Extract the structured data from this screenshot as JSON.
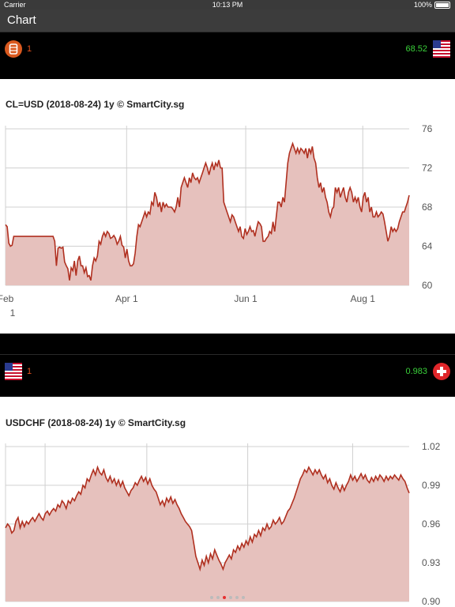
{
  "status": {
    "carrier": "Carrier",
    "time": "10:13 PM",
    "battery": "100%"
  },
  "nav": {
    "title": "Chart"
  },
  "pairs": [
    {
      "count": "1",
      "price": "68.52",
      "left_icon": "oil-barrel-icon",
      "right_icon": "us-flag-icon"
    },
    {
      "count": "1",
      "price": "0.983",
      "left_icon": "us-flag-icon",
      "right_icon": "swiss-flag-icon"
    }
  ],
  "chart_data": [
    {
      "type": "area",
      "title": "CL=USD (2018-08-24) 1y  © SmartCity.sg",
      "xlabel": "",
      "ylabel": "",
      "ylim": [
        60,
        76
      ],
      "yticks": [
        "76",
        "72",
        "68",
        "64",
        "60"
      ],
      "xticks": [
        "Feb\n1",
        "Apr 1",
        "Jun 1",
        "Aug 1"
      ],
      "color": "#b03020",
      "fill": "#e6c1bd",
      "values": [
        66.2,
        66.0,
        64.3,
        64.0,
        64.1,
        65.0,
        65.0,
        65.0,
        65.0,
        65.0,
        65.0,
        65.0,
        65.0,
        65.0,
        65.0,
        65.0,
        65.0,
        65.0,
        65.0,
        65.0,
        65.0,
        65.0,
        65.0,
        65.0,
        65.0,
        65.0,
        65.0,
        65.0,
        65.0,
        65.0,
        64.5,
        62.0,
        63.8,
        63.9,
        63.8,
        63.9,
        62.4,
        62.0,
        61.7,
        60.5,
        61.8,
        61.5,
        62.5,
        61.0,
        62.5,
        63.0,
        62.0,
        62.0,
        61.3,
        61.8,
        60.9,
        61.0,
        60.5,
        62.0,
        62.8,
        62.5,
        63.0,
        64.5,
        64.2,
        65.0,
        65.4,
        65.0,
        65.5,
        65.3,
        64.8,
        64.9,
        65.1,
        64.8,
        64.2,
        64.5,
        65.0,
        64.1,
        63.9,
        62.8,
        63.7,
        62.5,
        62.0,
        62.0,
        62.2,
        63.3,
        65.0,
        66.2,
        66.0,
        66.5,
        67.0,
        67.5,
        67.0,
        67.5,
        67.3,
        68.5,
        68.2,
        69.5,
        69.0,
        68.0,
        68.5,
        67.5,
        68.5,
        68.0,
        68.3,
        68.0,
        68.0,
        68.0,
        67.8,
        67.5,
        68.0,
        69.0,
        68.0,
        70.0,
        70.5,
        71.0,
        70.5,
        70.0,
        71.0,
        70.5,
        71.5,
        71.0,
        70.8,
        71.0,
        70.5,
        71.0,
        71.5,
        72.0,
        72.5,
        72.0,
        71.3,
        72.0,
        72.5,
        71.8,
        72.5,
        72.2,
        72.8,
        72.0,
        72.0,
        68.5,
        68.0,
        67.5,
        67.0,
        66.5,
        67.2,
        67.0,
        66.5,
        66.0,
        65.5,
        66.0,
        65.0,
        64.8,
        65.8,
        65.2,
        65.5,
        66.0,
        65.5,
        65.6,
        65.0,
        65.8,
        66.5,
        66.3,
        66.0,
        64.5,
        64.5,
        64.8,
        65.0,
        65.5,
        65.3,
        66.5,
        65.5,
        67.0,
        68.5,
        68.5,
        68.0,
        69.0,
        68.5,
        70.5,
        72.5,
        73.5,
        74.0,
        74.5,
        74.0,
        73.5,
        74.0,
        73.5,
        74.0,
        73.8,
        73.5,
        74.0,
        73.0,
        74.0,
        73.5,
        74.2,
        73.0,
        72.5,
        71.0,
        70.0,
        70.5,
        69.5,
        70.0,
        69.0,
        68.5,
        67.5,
        67.0,
        67.8,
        68.0,
        70.0,
        69.5,
        70.0,
        69.0,
        69.5,
        70.0,
        69.0,
        68.5,
        69.5,
        70.0,
        69.5,
        68.5,
        69.0,
        68.5,
        69.0,
        68.0,
        67.5,
        69.0,
        69.5,
        68.5,
        69.0,
        67.5,
        68.0,
        67.0,
        67.0,
        67.5,
        67.0,
        67.2,
        67.5,
        67.3,
        66.5,
        65.5,
        64.5,
        65.0,
        66.0,
        65.5,
        65.8,
        65.5,
        65.8,
        66.5,
        67.0,
        67.5,
        67.5,
        68.0,
        68.5,
        69.2
      ]
    },
    {
      "type": "area",
      "title": "USDCHF (2018-08-24) 1y  © SmartCity.sg",
      "xlabel": "",
      "ylabel": "",
      "ylim": [
        0.9,
        1.02
      ],
      "yticks": [
        "1.02",
        "0.99",
        "0.96",
        "0.93",
        "0.90"
      ],
      "color": "#b03020",
      "fill": "#e6c1bd",
      "values": [
        0.957,
        0.96,
        0.958,
        0.953,
        0.955,
        0.962,
        0.965,
        0.957,
        0.962,
        0.958,
        0.962,
        0.96,
        0.963,
        0.965,
        0.962,
        0.965,
        0.968,
        0.965,
        0.963,
        0.968,
        0.97,
        0.967,
        0.97,
        0.972,
        0.97,
        0.975,
        0.973,
        0.978,
        0.976,
        0.972,
        0.978,
        0.976,
        0.98,
        0.978,
        0.982,
        0.985,
        0.983,
        0.99,
        0.988,
        0.995,
        0.993,
        0.998,
        1.002,
        0.998,
        1.004,
        1.0,
        0.998,
        1.002,
        0.996,
        0.993,
        0.997,
        0.992,
        0.995,
        0.99,
        0.994,
        0.989,
        0.993,
        0.988,
        0.985,
        0.982,
        0.986,
        0.988,
        0.992,
        0.99,
        0.994,
        0.997,
        0.993,
        0.996,
        0.991,
        0.995,
        0.99,
        0.987,
        0.985,
        0.98,
        0.975,
        0.978,
        0.974,
        0.98,
        0.977,
        0.981,
        0.976,
        0.979,
        0.975,
        0.972,
        0.968,
        0.965,
        0.962,
        0.96,
        0.958,
        0.955,
        0.945,
        0.935,
        0.93,
        0.925,
        0.932,
        0.928,
        0.935,
        0.93,
        0.937,
        0.933,
        0.94,
        0.936,
        0.932,
        0.929,
        0.925,
        0.93,
        0.933,
        0.936,
        0.933,
        0.94,
        0.938,
        0.943,
        0.94,
        0.945,
        0.942,
        0.947,
        0.944,
        0.95,
        0.946,
        0.952,
        0.95,
        0.955,
        0.951,
        0.957,
        0.955,
        0.96,
        0.956,
        0.958,
        0.963,
        0.96,
        0.962,
        0.965,
        0.96,
        0.962,
        0.966,
        0.97,
        0.972,
        0.976,
        0.98,
        0.985,
        0.99,
        0.995,
        0.998,
        1.002,
        1.0,
        1.004,
        1.001,
        0.998,
        1.002,
        0.999,
        1.002,
        0.998,
        0.995,
        0.998,
        0.992,
        0.995,
        0.99,
        0.987,
        0.992,
        0.988,
        0.985,
        0.99,
        0.986,
        0.99,
        0.993,
        0.998,
        0.994,
        0.997,
        0.993,
        0.996,
        0.999,
        0.995,
        0.998,
        0.994,
        0.992,
        0.996,
        0.993,
        0.997,
        0.994,
        0.998,
        0.996,
        0.993,
        0.997,
        0.994,
        0.997,
        0.995,
        0.998,
        0.996,
        0.994,
        0.998,
        0.995,
        0.993,
        0.988,
        0.984
      ]
    }
  ]
}
